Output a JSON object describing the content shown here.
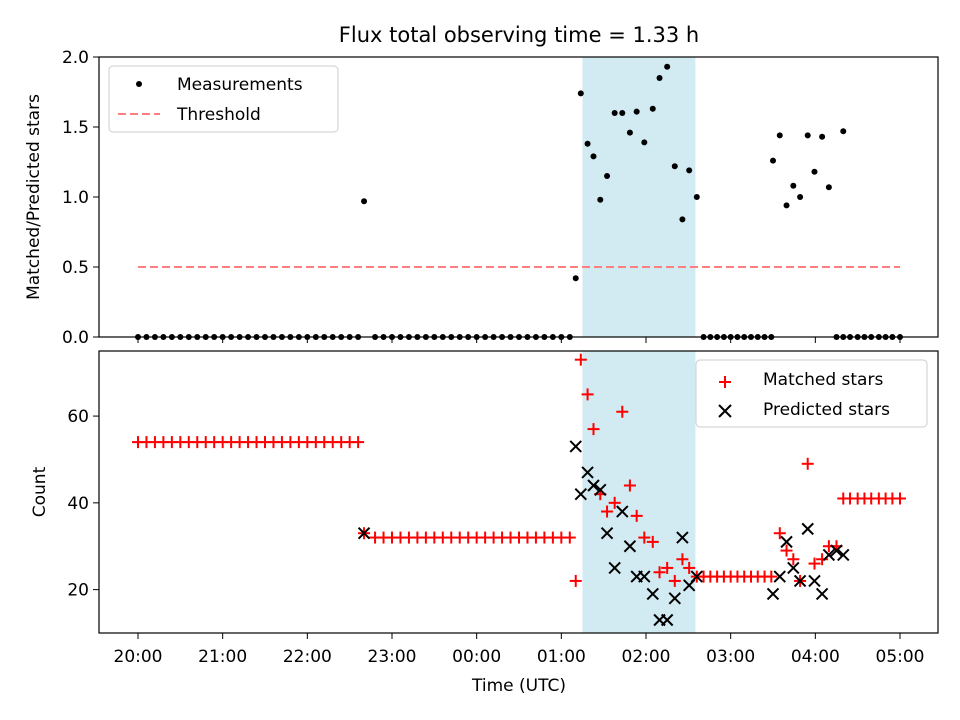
{
  "figure": {
    "title": "Flux total observing time = 1.33 h",
    "xlabel": "Time (UTC)",
    "xticks": [
      "20:00",
      "21:00",
      "22:00",
      "23:00",
      "00:00",
      "01:00",
      "02:00",
      "03:00",
      "04:00",
      "05:00"
    ]
  },
  "chart_data": [
    {
      "type": "scatter",
      "ylabel": "Matched/Predicted stars",
      "ylim": [
        0,
        2.0
      ],
      "yticks": [
        "0.0",
        "0.5",
        "1.0",
        "1.5",
        "2.0"
      ],
      "x_unit": "hours after 20:00 UTC",
      "legend": {
        "position": "top-left",
        "entries": [
          "Measurements",
          "Threshold"
        ]
      },
      "shaded_interval": {
        "start": "01:15",
        "end": "02:35",
        "color": "#add8e6"
      },
      "series": [
        {
          "name": "Measurements",
          "color": "#000000",
          "points": [
            [
              0,
              0
            ],
            [
              0.1,
              0
            ],
            [
              0.2,
              0
            ],
            [
              0.3,
              0
            ],
            [
              0.4,
              0
            ],
            [
              0.5,
              0
            ],
            [
              0.6,
              0
            ],
            [
              0.7,
              0
            ],
            [
              0.8,
              0
            ],
            [
              0.9,
              0
            ],
            [
              1,
              0
            ],
            [
              1.1,
              0
            ],
            [
              1.2,
              0
            ],
            [
              1.3,
              0
            ],
            [
              1.4,
              0
            ],
            [
              1.5,
              0
            ],
            [
              1.6,
              0
            ],
            [
              1.7,
              0
            ],
            [
              1.8,
              0
            ],
            [
              1.9,
              0
            ],
            [
              2,
              0
            ],
            [
              2.1,
              0
            ],
            [
              2.2,
              0
            ],
            [
              2.3,
              0
            ],
            [
              2.4,
              0
            ],
            [
              2.5,
              0
            ],
            [
              2.6,
              0
            ],
            [
              2.67,
              0.97
            ],
            [
              2.8,
              0
            ],
            [
              2.9,
              0
            ],
            [
              3,
              0
            ],
            [
              3.1,
              0
            ],
            [
              3.2,
              0
            ],
            [
              3.3,
              0
            ],
            [
              3.4,
              0
            ],
            [
              3.5,
              0
            ],
            [
              3.6,
              0
            ],
            [
              3.7,
              0
            ],
            [
              3.8,
              0
            ],
            [
              3.9,
              0
            ],
            [
              4,
              0
            ],
            [
              4.1,
              0
            ],
            [
              4.2,
              0
            ],
            [
              4.3,
              0
            ],
            [
              4.4,
              0
            ],
            [
              4.5,
              0
            ],
            [
              4.6,
              0
            ],
            [
              4.7,
              0
            ],
            [
              4.8,
              0
            ],
            [
              4.9,
              0
            ],
            [
              5,
              0
            ],
            [
              5.1,
              0
            ],
            [
              5.17,
              0.42
            ],
            [
              5.23,
              1.74
            ],
            [
              5.31,
              1.38
            ],
            [
              5.38,
              1.29
            ],
            [
              5.46,
              0.98
            ],
            [
              5.54,
              1.15
            ],
            [
              5.63,
              1.6
            ],
            [
              5.72,
              1.6
            ],
            [
              5.81,
              1.46
            ],
            [
              5.89,
              1.61
            ],
            [
              5.98,
              1.39
            ],
            [
              6.08,
              1.63
            ],
            [
              6.16,
              1.85
            ],
            [
              6.25,
              1.93
            ],
            [
              6.34,
              1.22
            ],
            [
              6.43,
              0.84
            ],
            [
              6.51,
              1.19
            ],
            [
              6.6,
              1.0
            ],
            [
              6.68,
              0
            ],
            [
              6.76,
              0
            ],
            [
              6.84,
              0
            ],
            [
              6.92,
              0
            ],
            [
              7,
              0
            ],
            [
              7.08,
              0
            ],
            [
              7.16,
              0
            ],
            [
              7.24,
              0
            ],
            [
              7.32,
              0
            ],
            [
              7.4,
              0
            ],
            [
              7.48,
              0
            ],
            [
              7.5,
              1.26
            ],
            [
              7.58,
              1.44
            ],
            [
              7.66,
              0.94
            ],
            [
              7.74,
              1.08
            ],
            [
              7.82,
              1.0
            ],
            [
              7.91,
              1.44
            ],
            [
              7.99,
              1.18
            ],
            [
              8.08,
              1.43
            ],
            [
              8.16,
              1.07
            ],
            [
              8.33,
              1.47
            ],
            [
              8.25,
              0
            ],
            [
              8.33,
              0
            ],
            [
              8.41,
              0
            ],
            [
              8.5,
              0
            ],
            [
              8.58,
              0
            ],
            [
              8.66,
              0
            ],
            [
              8.75,
              0
            ],
            [
              8.83,
              0
            ],
            [
              8.91,
              0
            ],
            [
              9,
              0
            ]
          ]
        },
        {
          "name": "Threshold",
          "color": "#ff7f7f",
          "style": "dashed",
          "x": [
            0,
            9
          ],
          "y": [
            0.5,
            0.5
          ]
        }
      ]
    },
    {
      "type": "scatter",
      "ylabel": "Count",
      "ylim": [
        10,
        75
      ],
      "yticks": [
        "20",
        "40",
        "60"
      ],
      "x_unit": "hours after 20:00 UTC",
      "legend": {
        "position": "top-right",
        "entries": [
          "Matched stars",
          "Predicted stars"
        ]
      },
      "shaded_interval": {
        "start": "01:15",
        "end": "02:35",
        "color": "#add8e6"
      },
      "series": [
        {
          "name": "Matched stars",
          "color": "#ff0000",
          "marker": "+",
          "points": [
            [
              0,
              54
            ],
            [
              0.1,
              54
            ],
            [
              0.2,
              54
            ],
            [
              0.3,
              54
            ],
            [
              0.4,
              54
            ],
            [
              0.5,
              54
            ],
            [
              0.6,
              54
            ],
            [
              0.7,
              54
            ],
            [
              0.8,
              54
            ],
            [
              0.9,
              54
            ],
            [
              1,
              54
            ],
            [
              1.1,
              54
            ],
            [
              1.2,
              54
            ],
            [
              1.3,
              54
            ],
            [
              1.4,
              54
            ],
            [
              1.5,
              54
            ],
            [
              1.6,
              54
            ],
            [
              1.7,
              54
            ],
            [
              1.8,
              54
            ],
            [
              1.9,
              54
            ],
            [
              2,
              54
            ],
            [
              2.1,
              54
            ],
            [
              2.2,
              54
            ],
            [
              2.3,
              54
            ],
            [
              2.4,
              54
            ],
            [
              2.5,
              54
            ],
            [
              2.6,
              54
            ],
            [
              2.67,
              33
            ],
            [
              2.8,
              32
            ],
            [
              2.9,
              32
            ],
            [
              3,
              32
            ],
            [
              3.1,
              32
            ],
            [
              3.2,
              32
            ],
            [
              3.3,
              32
            ],
            [
              3.4,
              32
            ],
            [
              3.5,
              32
            ],
            [
              3.6,
              32
            ],
            [
              3.7,
              32
            ],
            [
              3.8,
              32
            ],
            [
              3.9,
              32
            ],
            [
              4,
              32
            ],
            [
              4.1,
              32
            ],
            [
              4.2,
              32
            ],
            [
              4.3,
              32
            ],
            [
              4.4,
              32
            ],
            [
              4.5,
              32
            ],
            [
              4.6,
              32
            ],
            [
              4.7,
              32
            ],
            [
              4.8,
              32
            ],
            [
              4.9,
              32
            ],
            [
              5,
              32
            ],
            [
              5.1,
              32
            ],
            [
              5.17,
              22
            ],
            [
              5.23,
              73
            ],
            [
              5.31,
              65
            ],
            [
              5.38,
              57
            ],
            [
              5.46,
              42
            ],
            [
              5.54,
              38
            ],
            [
              5.63,
              40
            ],
            [
              5.72,
              61
            ],
            [
              5.81,
              44
            ],
            [
              5.89,
              37
            ],
            [
              5.98,
              32
            ],
            [
              6.08,
              31
            ],
            [
              6.16,
              24
            ],
            [
              6.25,
              25
            ],
            [
              6.34,
              22
            ],
            [
              6.43,
              27
            ],
            [
              6.51,
              25
            ],
            [
              6.6,
              23
            ],
            [
              6.68,
              23
            ],
            [
              6.76,
              23
            ],
            [
              6.84,
              23
            ],
            [
              6.92,
              23
            ],
            [
              7,
              23
            ],
            [
              7.08,
              23
            ],
            [
              7.16,
              23
            ],
            [
              7.24,
              23
            ],
            [
              7.32,
              23
            ],
            [
              7.4,
              23
            ],
            [
              7.48,
              23
            ],
            [
              7.58,
              33
            ],
            [
              7.66,
              29
            ],
            [
              7.74,
              27
            ],
            [
              7.82,
              22
            ],
            [
              7.91,
              49
            ],
            [
              7.99,
              26
            ],
            [
              8.08,
              27
            ],
            [
              8.16,
              30
            ],
            [
              8.25,
              30
            ],
            [
              8.33,
              41
            ],
            [
              8.41,
              41
            ],
            [
              8.5,
              41
            ],
            [
              8.58,
              41
            ],
            [
              8.66,
              41
            ],
            [
              8.75,
              41
            ],
            [
              8.83,
              41
            ],
            [
              8.91,
              41
            ],
            [
              9,
              41
            ]
          ]
        },
        {
          "name": "Predicted stars",
          "color": "#000000",
          "marker": "x",
          "points": [
            [
              2.67,
              33
            ],
            [
              5.17,
              53
            ],
            [
              5.23,
              42
            ],
            [
              5.31,
              47
            ],
            [
              5.38,
              44
            ],
            [
              5.46,
              43
            ],
            [
              5.54,
              33
            ],
            [
              5.63,
              25
            ],
            [
              5.72,
              38
            ],
            [
              5.81,
              30
            ],
            [
              5.89,
              23
            ],
            [
              5.98,
              23
            ],
            [
              6.08,
              19
            ],
            [
              6.16,
              13
            ],
            [
              6.25,
              13
            ],
            [
              6.34,
              18
            ],
            [
              6.43,
              32
            ],
            [
              6.51,
              21
            ],
            [
              6.6,
              23
            ],
            [
              7.5,
              19
            ],
            [
              7.58,
              23
            ],
            [
              7.66,
              31
            ],
            [
              7.74,
              25
            ],
            [
              7.82,
              22
            ],
            [
              7.91,
              34
            ],
            [
              7.99,
              22
            ],
            [
              8.08,
              19
            ],
            [
              8.16,
              28
            ],
            [
              8.25,
              29
            ],
            [
              8.33,
              28
            ]
          ]
        }
      ]
    }
  ]
}
